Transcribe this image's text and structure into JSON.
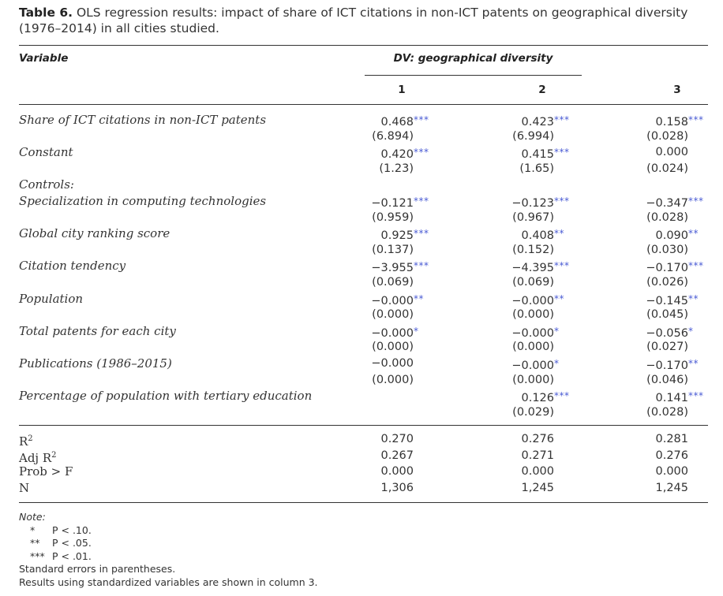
{
  "caption": {
    "label": "Table 6.",
    "text": " OLS regression results: impact of share of ICT citations in non-ICT patents on geographical diversity (1976–2014) in all cities studied."
  },
  "header": {
    "variable": "Variable",
    "dv": "DV: geographical diversity",
    "columns": [
      "1",
      "2",
      "3"
    ]
  },
  "rows": [
    {
      "label": "Share of ICT citations in non-ICT patents",
      "coef": [
        [
          "0.468",
          "***"
        ],
        [
          "0.423",
          "***"
        ],
        [
          "0.158",
          "***"
        ]
      ],
      "se": [
        "(6.894)",
        "(6.994)",
        "(0.028)"
      ]
    },
    {
      "label": "Constant",
      "coef": [
        [
          "0.420",
          "***"
        ],
        [
          "0.415",
          "***"
        ],
        [
          "0.000",
          ""
        ]
      ],
      "se": [
        "(1.23)",
        "(1.65)",
        "(0.024)"
      ]
    },
    {
      "label": "Controls:"
    },
    {
      "label": "Specialization in computing technologies",
      "coef": [
        [
          "−0.121",
          "***"
        ],
        [
          "−0.123",
          "***"
        ],
        [
          "−0.347",
          "***"
        ]
      ],
      "se": [
        "(0.959)",
        "(0.967)",
        "(0.028)"
      ]
    },
    {
      "label": "Global city ranking score",
      "coef": [
        [
          "0.925",
          "***"
        ],
        [
          "0.408",
          "**"
        ],
        [
          "0.090",
          "**"
        ]
      ],
      "se": [
        "(0.137)",
        "(0.152)",
        "(0.030)"
      ]
    },
    {
      "label": "Citation tendency",
      "coef": [
        [
          "−3.955",
          "***"
        ],
        [
          "−4.395",
          "***"
        ],
        [
          "−0.170",
          "***"
        ]
      ],
      "se": [
        "(0.069)",
        "(0.069)",
        "(0.026)"
      ]
    },
    {
      "label": "Population",
      "coef": [
        [
          "−0.000",
          "**"
        ],
        [
          "−0.000",
          "**"
        ],
        [
          "−0.145",
          "**"
        ]
      ],
      "se": [
        "(0.000)",
        "(0.000)",
        "(0.045)"
      ]
    },
    {
      "label": "Total patents for each city",
      "coef": [
        [
          "−0.000",
          "*"
        ],
        [
          "−0.000",
          "*"
        ],
        [
          "−0.056",
          "*"
        ]
      ],
      "se": [
        "(0.000)",
        "(0.000)",
        "(0.027)"
      ]
    },
    {
      "label": "Publications (1986–2015)",
      "coef": [
        [
          "−0.000",
          ""
        ],
        [
          "−0.000",
          "*"
        ],
        [
          "−0.170",
          "**"
        ]
      ],
      "se": [
        "(0.000)",
        "(0.000)",
        "(0.046)"
      ]
    },
    {
      "label": "Percentage of population with tertiary education",
      "coef": [
        [
          "",
          ""
        ],
        [
          "0.126",
          "***"
        ],
        [
          "0.141",
          "***"
        ]
      ],
      "se": [
        "",
        "(0.029)",
        "(0.028)"
      ]
    }
  ],
  "stats": [
    {
      "label": "R",
      "sup": "2",
      "values": [
        "0.270",
        "0.276",
        "0.281"
      ]
    },
    {
      "label": "Adj R",
      "sup": "2",
      "values": [
        "0.267",
        "0.271",
        "0.276"
      ]
    },
    {
      "label": "Prob > F",
      "sup": "",
      "values": [
        "0.000",
        "0.000",
        "0.000"
      ]
    },
    {
      "label": "N",
      "sup": "",
      "values": [
        "1,306",
        "1,245",
        "1,245"
      ]
    }
  ],
  "notes": {
    "title": "Note:",
    "significance": [
      {
        "symbol": "*",
        "text": "P < .10."
      },
      {
        "symbol": "**",
        "text": "P < .05."
      },
      {
        "symbol": "***",
        "text": "P < .01."
      }
    ],
    "lines": [
      "Standard errors in parentheses.",
      "Results using standardized variables are shown in column 3."
    ]
  },
  "colors": {
    "text": "#333333",
    "stars": "#4a5bd4",
    "rule": "#333333"
  }
}
